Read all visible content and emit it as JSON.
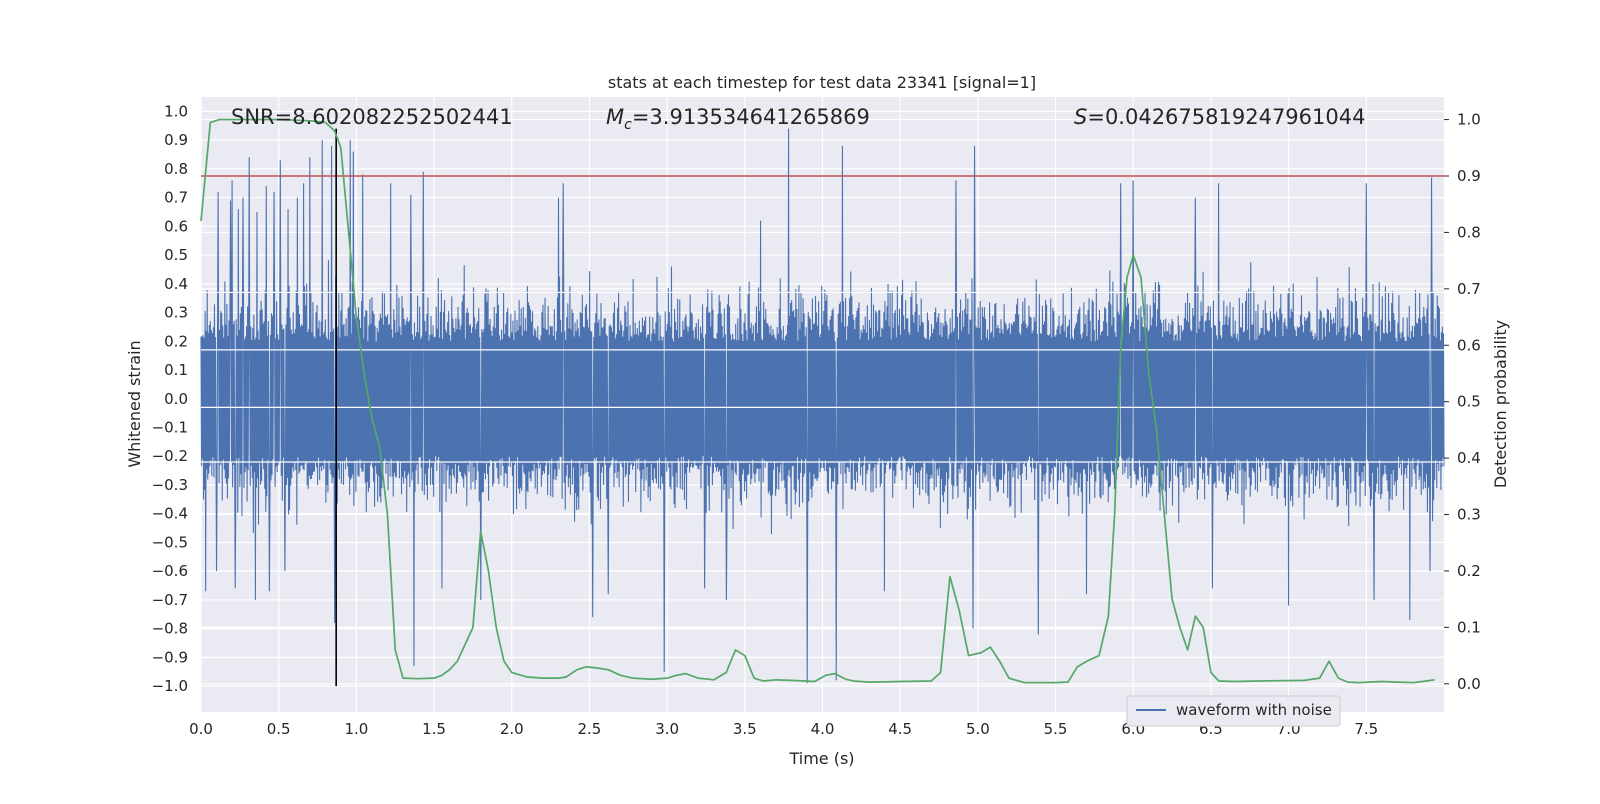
{
  "chart_data": {
    "type": "line",
    "title": "stats at each timestep for test data 23341 [signal=1]",
    "xlabel": "Time (s)",
    "ylabel_left": "Whitened strain",
    "ylabel_right": "Detection probability",
    "xlim": [
      0,
      8
    ],
    "ylim_left": [
      -1.09,
      1.05
    ],
    "ylim_right": [
      -0.05,
      1.04
    ],
    "x_ticks": [
      0.0,
      0.5,
      1.0,
      1.5,
      2.0,
      2.5,
      3.0,
      3.5,
      4.0,
      4.5,
      5.0,
      5.5,
      6.0,
      6.5,
      7.0,
      7.5
    ],
    "x_tick_labels": [
      "0.0",
      "0.5",
      "1.0",
      "1.5",
      "2.0",
      "2.5",
      "3.0",
      "3.5",
      "4.0",
      "4.5",
      "5.0",
      "5.5",
      "6.0",
      "6.5",
      "7.0",
      "7.5"
    ],
    "y_left_ticks": [
      -1.0,
      -0.9,
      -0.8,
      -0.7,
      -0.6,
      -0.5,
      -0.4,
      -0.3,
      -0.2,
      -0.1,
      0.0,
      0.1,
      0.2,
      0.3,
      0.4,
      0.5,
      0.6,
      0.7,
      0.8,
      0.9,
      1.0
    ],
    "y_left_tick_labels": [
      "−1.0",
      "−0.9",
      "−0.8",
      "−0.7",
      "−0.6",
      "−0.5",
      "−0.4",
      "−0.3",
      "−0.2",
      "−0.1",
      "0.0",
      "0.1",
      "0.2",
      "0.3",
      "0.4",
      "0.5",
      "0.6",
      "0.7",
      "0.8",
      "0.9",
      "1.0"
    ],
    "y_right_ticks": [
      0.0,
      0.1,
      0.2,
      0.3,
      0.4,
      0.5,
      0.6,
      0.7,
      0.8,
      0.9,
      1.0
    ],
    "y_right_tick_labels": [
      "0.0",
      "0.1",
      "0.2",
      "0.3",
      "0.4",
      "0.5",
      "0.6",
      "0.7",
      "0.8",
      "0.9",
      "1.0"
    ],
    "grid": true,
    "legend_position": "lower-right",
    "annotations": [
      {
        "text": "SNR=8.602082252502441"
      },
      {
        "symbol": "M",
        "sub": "c",
        "text": "=3.913534641265869"
      },
      {
        "symbol": "S",
        "text": "=0.042675819247961044"
      }
    ],
    "threshold": {
      "y_right": 0.9,
      "color": "#c44e52"
    },
    "vertical_marker": {
      "x": 0.87,
      "y_range": [
        -1.0,
        0.94
      ],
      "color": "#000000"
    },
    "series": [
      {
        "name": "waveform with noise",
        "color": "#4c72b0",
        "axis": "left",
        "x_start": 0.0,
        "x_end": 8.0,
        "envelope": {
          "p95_low": -0.42,
          "p95_high": 0.37,
          "typical_max": 0.62,
          "typical_min": -0.62
        },
        "spikes": [
          {
            "x": 0.11,
            "y": 0.72
          },
          {
            "x": 0.19,
            "y": 0.69
          },
          {
            "x": 0.2,
            "y": 0.76
          },
          {
            "x": 0.24,
            "y": 0.66
          },
          {
            "x": 0.27,
            "y": 0.7
          },
          {
            "x": 0.31,
            "y": 0.84
          },
          {
            "x": 0.36,
            "y": 0.65
          },
          {
            "x": 0.42,
            "y": 0.74
          },
          {
            "x": 0.47,
            "y": 0.72
          },
          {
            "x": 0.51,
            "y": 0.83
          },
          {
            "x": 0.56,
            "y": 0.66
          },
          {
            "x": 0.62,
            "y": 0.7
          },
          {
            "x": 0.66,
            "y": 0.75
          },
          {
            "x": 0.7,
            "y": 0.84
          },
          {
            "x": 0.78,
            "y": 0.9
          },
          {
            "x": 0.84,
            "y": 0.88
          },
          {
            "x": 0.96,
            "y": 0.9
          },
          {
            "x": 0.98,
            "y": 0.86
          },
          {
            "x": 1.04,
            "y": 0.78
          },
          {
            "x": 1.22,
            "y": 0.75
          },
          {
            "x": 1.35,
            "y": 0.71
          },
          {
            "x": 1.43,
            "y": 0.79
          },
          {
            "x": 2.3,
            "y": 0.7
          },
          {
            "x": 2.33,
            "y": 0.75
          },
          {
            "x": 2.52,
            "y": 0.74
          },
          {
            "x": 3.6,
            "y": 0.62
          },
          {
            "x": 3.78,
            "y": 0.94
          },
          {
            "x": 4.13,
            "y": 0.88
          },
          {
            "x": 4.86,
            "y": 0.76
          },
          {
            "x": 4.98,
            "y": 0.88
          },
          {
            "x": 5.92,
            "y": 0.75
          },
          {
            "x": 6.0,
            "y": 0.76
          },
          {
            "x": 6.4,
            "y": 0.7
          },
          {
            "x": 6.55,
            "y": 0.75
          },
          {
            "x": 7.5,
            "y": 0.75
          },
          {
            "x": 7.92,
            "y": 0.77
          },
          {
            "x": 0.03,
            "y": -0.67
          },
          {
            "x": 0.1,
            "y": -0.6
          },
          {
            "x": 0.22,
            "y": -0.66
          },
          {
            "x": 0.35,
            "y": -0.7
          },
          {
            "x": 0.44,
            "y": -0.67
          },
          {
            "x": 0.54,
            "y": -0.6
          },
          {
            "x": 0.86,
            "y": -0.78
          },
          {
            "x": 1.37,
            "y": -0.93
          },
          {
            "x": 1.55,
            "y": -0.66
          },
          {
            "x": 1.8,
            "y": -0.7
          },
          {
            "x": 2.52,
            "y": -0.76
          },
          {
            "x": 2.62,
            "y": -0.68
          },
          {
            "x": 2.98,
            "y": -0.95
          },
          {
            "x": 3.24,
            "y": -0.66
          },
          {
            "x": 3.38,
            "y": -0.7
          },
          {
            "x": 3.9,
            "y": -0.99
          },
          {
            "x": 4.09,
            "y": -0.98
          },
          {
            "x": 4.4,
            "y": -0.67
          },
          {
            "x": 4.97,
            "y": -0.8
          },
          {
            "x": 5.39,
            "y": -0.82
          },
          {
            "x": 5.7,
            "y": -0.68
          },
          {
            "x": 6.51,
            "y": -0.66
          },
          {
            "x": 7.0,
            "y": -0.72
          },
          {
            "x": 7.55,
            "y": -0.7
          },
          {
            "x": 7.78,
            "y": -0.77
          },
          {
            "x": 7.91,
            "y": -0.6
          }
        ]
      },
      {
        "name": "",
        "color": "#55a868",
        "axis": "right",
        "x": [
          0.0,
          0.06,
          0.12,
          0.18,
          0.3,
          0.5,
          0.7,
          0.8,
          0.86,
          0.9,
          0.95,
          1.0,
          1.05,
          1.1,
          1.15,
          1.2,
          1.25,
          1.3,
          1.4,
          1.5,
          1.55,
          1.6,
          1.65,
          1.75,
          1.8,
          1.85,
          1.9,
          1.95,
          2.0,
          2.1,
          2.2,
          2.3,
          2.35,
          2.42,
          2.48,
          2.55,
          2.62,
          2.7,
          2.78,
          2.9,
          3.0,
          3.06,
          3.12,
          3.2,
          3.3,
          3.38,
          3.44,
          3.5,
          3.56,
          3.62,
          3.7,
          3.8,
          3.95,
          4.02,
          4.08,
          4.15,
          4.2,
          4.3,
          4.5,
          4.7,
          4.76,
          4.82,
          4.88,
          4.94,
          5.02,
          5.08,
          5.14,
          5.2,
          5.3,
          5.5,
          5.58,
          5.64,
          5.7,
          5.78,
          5.84,
          5.88,
          5.92,
          5.96,
          6.0,
          6.05,
          6.1,
          6.15,
          6.2,
          6.25,
          6.3,
          6.35,
          6.4,
          6.45,
          6.5,
          6.55,
          6.65,
          6.8,
          7.1,
          7.2,
          7.26,
          7.32,
          7.38,
          7.45,
          7.6,
          7.7,
          7.8,
          7.86,
          7.94
        ],
        "y": [
          0.82,
          0.995,
          1.0,
          1.0,
          1.0,
          1.0,
          0.998,
          0.995,
          0.98,
          0.95,
          0.8,
          0.65,
          0.55,
          0.47,
          0.42,
          0.3,
          0.06,
          0.01,
          0.009,
          0.01,
          0.015,
          0.025,
          0.04,
          0.1,
          0.27,
          0.2,
          0.1,
          0.04,
          0.02,
          0.012,
          0.01,
          0.01,
          0.012,
          0.025,
          0.03,
          0.028,
          0.025,
          0.015,
          0.01,
          0.008,
          0.01,
          0.015,
          0.018,
          0.01,
          0.007,
          0.02,
          0.06,
          0.05,
          0.01,
          0.005,
          0.007,
          0.006,
          0.004,
          0.015,
          0.018,
          0.008,
          0.005,
          0.003,
          0.004,
          0.005,
          0.02,
          0.19,
          0.13,
          0.05,
          0.055,
          0.065,
          0.04,
          0.01,
          0.002,
          0.002,
          0.003,
          0.03,
          0.04,
          0.05,
          0.12,
          0.3,
          0.6,
          0.72,
          0.76,
          0.72,
          0.55,
          0.45,
          0.3,
          0.15,
          0.1,
          0.06,
          0.12,
          0.1,
          0.02,
          0.005,
          0.004,
          0.005,
          0.006,
          0.01,
          0.04,
          0.01,
          0.003,
          0.002,
          0.004,
          0.003,
          0.002,
          0.004,
          0.007
        ]
      }
    ]
  }
}
